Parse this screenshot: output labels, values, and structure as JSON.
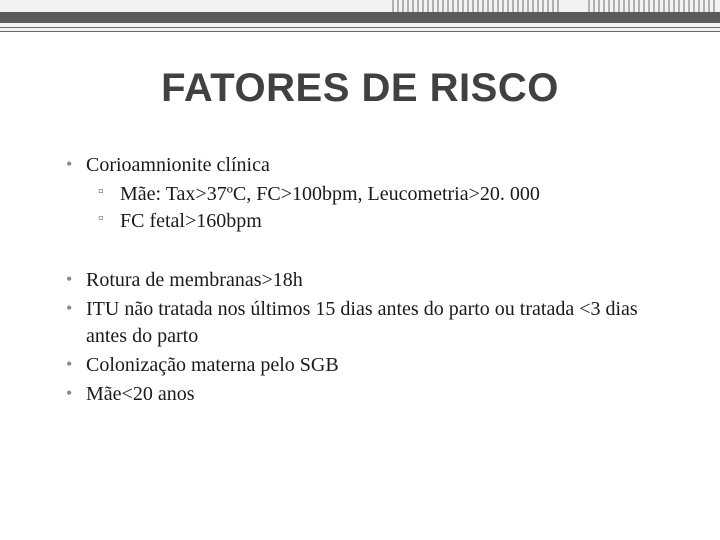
{
  "colors": {
    "background": "#ffffff",
    "title_text": "#414141",
    "body_text": "#1a1a1a",
    "bullet": "#8a8a8a",
    "subbullet": "#7a7a7a",
    "border_dark": "#5a5a5a",
    "border_light": "#b0b0b0",
    "header_bg": "#f2f2f2"
  },
  "title": {
    "text": "FATORES DE RISCO",
    "font_family": "Trebuchet MS",
    "font_size_pt": 30,
    "font_weight": "bold"
  },
  "body": {
    "font_family": "Georgia",
    "font_size_pt": 15
  },
  "bullets": {
    "b1": {
      "text": "Corioamnionite clínica"
    },
    "b1s1": {
      "text": "Mãe: Tax>37ºC, FC>100bpm, Leucometria>20. 000"
    },
    "b1s2": {
      "text": "FC fetal>160bpm"
    },
    "b2": {
      "text": "Rotura de membranas>18h"
    },
    "b3": {
      "text": "ITU não tratada nos últimos 15 dias antes do parto ou tratada <3 dias antes do parto"
    },
    "b4": {
      "text": "Colonização materna pelo SGB"
    },
    "b5": {
      "text": "Mãe<20 anos"
    }
  }
}
